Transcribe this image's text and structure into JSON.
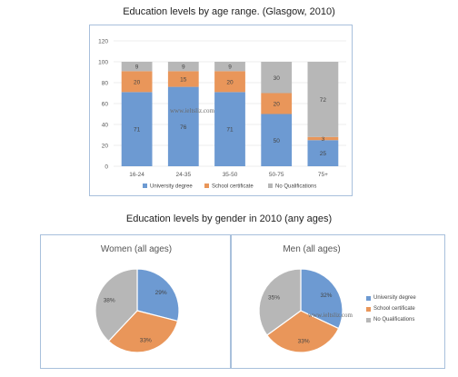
{
  "colors": {
    "university": "#6d9ad2",
    "school": "#e9965a",
    "none": "#b7b7b7"
  },
  "watermark": "www.ieltsliz.com",
  "chart_data": [
    {
      "type": "bar",
      "stacked": true,
      "title": "Education levels by age range. (Glasgow, 2010)",
      "categories": [
        "16-24",
        "24-35",
        "35-50",
        "50-75",
        "75+"
      ],
      "series": [
        {
          "name": "University degree",
          "values": [
            71,
            76,
            71,
            50,
            25
          ]
        },
        {
          "name": "School certificate",
          "values": [
            20,
            15,
            20,
            20,
            3
          ]
        },
        {
          "name": "No Qualifications",
          "values": [
            9,
            9,
            9,
            30,
            72
          ]
        }
      ],
      "ylim": [
        0,
        120
      ],
      "yticks": [
        "0",
        "20",
        "40",
        "60",
        "80",
        "100",
        "120"
      ],
      "grid": true,
      "legend": "bottom"
    },
    {
      "type": "pie",
      "group_title": "Education levels by gender in 2010 (any ages)",
      "title": "Women (all ages)",
      "labels": [
        "University degree",
        "School certificate",
        "No Qualifications"
      ],
      "values": [
        29,
        33,
        38
      ],
      "value_labels": [
        "29%",
        "33%",
        "38%"
      ]
    },
    {
      "type": "pie",
      "title": "Men (all ages)",
      "labels": [
        "University degree",
        "School certificate",
        "No Qualifications"
      ],
      "values": [
        32,
        33,
        35
      ],
      "value_labels": [
        "32%",
        "33%",
        "35%"
      ],
      "legend": "right"
    }
  ]
}
